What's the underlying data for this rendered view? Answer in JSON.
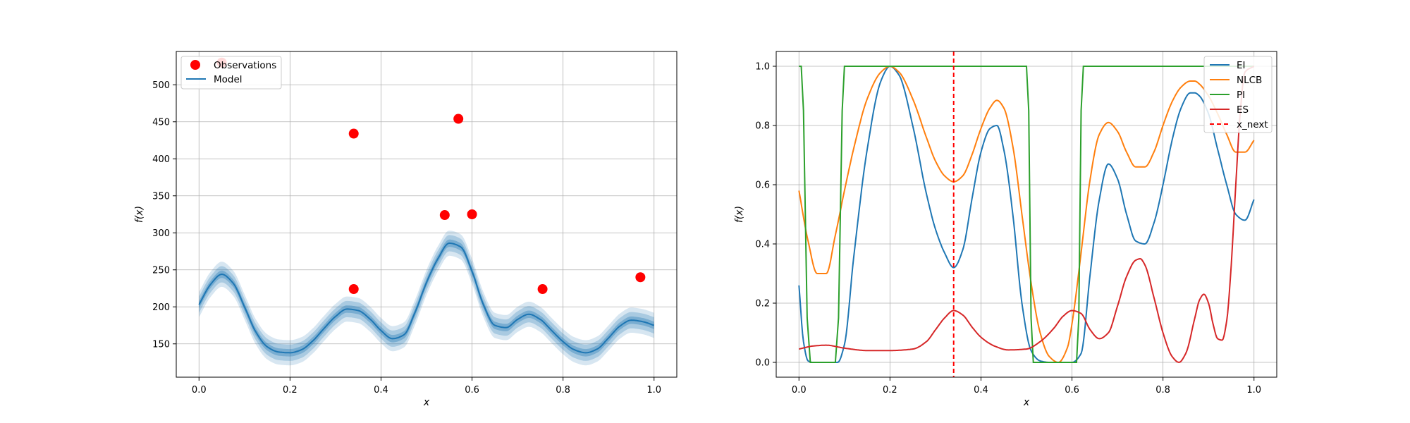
{
  "chart_data": [
    {
      "type": "line",
      "xlabel": "x",
      "ylabel": "f(x)",
      "xlim": [
        -0.05,
        1.05
      ],
      "ylim": [
        105,
        545
      ],
      "xticks": [
        0.0,
        0.2,
        0.4,
        0.6,
        0.8,
        1.0
      ],
      "xtick_labels": [
        "0.0",
        "0.2",
        "0.4",
        "0.6",
        "0.8",
        "1.0"
      ],
      "yticks": [
        150,
        200,
        250,
        300,
        350,
        400,
        450,
        500
      ],
      "ytick_labels": [
        "150",
        "200",
        "250",
        "300",
        "350",
        "400",
        "450",
        "500"
      ],
      "grid": true,
      "legend": "upper left",
      "colors": {
        "model": "#1f77b4",
        "observations": "#ff0000"
      },
      "observations": {
        "name": "Observations",
        "x": [
          0.05,
          0.34,
          0.34,
          0.54,
          0.57,
          0.6,
          0.755,
          0.97
        ],
        "y": [
          530,
          434,
          224,
          324,
          454,
          325,
          224,
          240
        ]
      },
      "model": {
        "name": "Model",
        "x": [
          0,
          0.025,
          0.05,
          0.075,
          0.1,
          0.125,
          0.15,
          0.175,
          0.2,
          0.225,
          0.25,
          0.275,
          0.3,
          0.325,
          0.35,
          0.375,
          0.4,
          0.425,
          0.45,
          0.475,
          0.5,
          0.525,
          0.55,
          0.575,
          0.6,
          0.625,
          0.65,
          0.675,
          0.7,
          0.725,
          0.75,
          0.775,
          0.8,
          0.825,
          0.85,
          0.875,
          0.9,
          0.925,
          0.95,
          0.975,
          1.0
        ],
        "y": [
          203,
          230,
          244,
          232,
          200,
          166,
          146,
          139,
          138,
          142,
          154,
          171,
          187,
          197,
          195,
          184,
          168,
          157,
          162,
          193,
          233,
          265,
          286,
          281,
          248,
          203,
          175,
          172,
          183,
          190,
          183,
          168,
          153,
          142,
          138,
          143,
          158,
          174,
          182,
          180,
          175
        ],
        "band_widths": [
          5,
          11,
          17
        ]
      }
    },
    {
      "type": "line",
      "xlabel": "x",
      "ylabel": "f(x)",
      "xlim": [
        -0.05,
        1.05
      ],
      "ylim": [
        -0.05,
        1.05
      ],
      "xticks": [
        0.0,
        0.2,
        0.4,
        0.6,
        0.8,
        1.0
      ],
      "xtick_labels": [
        "0.0",
        "0.2",
        "0.4",
        "0.6",
        "0.8",
        "1.0"
      ],
      "yticks": [
        0.0,
        0.2,
        0.4,
        0.6,
        0.8,
        1.0
      ],
      "ytick_labels": [
        "0.0",
        "0.2",
        "0.4",
        "0.6",
        "0.8",
        "1.0"
      ],
      "grid": true,
      "legend": "upper right",
      "series": [
        {
          "name": "EI",
          "color": "#1f77b4",
          "x": [
            0,
            0.01,
            0.02,
            0.03,
            0.05,
            0.07,
            0.085,
            0.1,
            0.12,
            0.15,
            0.18,
            0.2,
            0.22,
            0.25,
            0.28,
            0.3,
            0.32,
            0.34,
            0.36,
            0.38,
            0.4,
            0.42,
            0.435,
            0.45,
            0.47,
            0.49,
            0.51,
            0.53,
            0.55,
            0.57,
            0.59,
            0.6,
            0.62,
            0.64,
            0.66,
            0.68,
            0.7,
            0.72,
            0.74,
            0.76,
            0.78,
            0.8,
            0.82,
            0.84,
            0.86,
            0.87,
            0.88,
            0.9,
            0.92,
            0.94,
            0.96,
            0.98,
            1.0
          ],
          "y": [
            0.26,
            0.07,
            0.005,
            0.0,
            0.0,
            0.0,
            0.0,
            0.06,
            0.35,
            0.72,
            0.95,
            1.0,
            0.97,
            0.8,
            0.57,
            0.45,
            0.37,
            0.32,
            0.38,
            0.55,
            0.71,
            0.79,
            0.8,
            0.72,
            0.5,
            0.2,
            0.04,
            0.005,
            0.0,
            0.0,
            0.0,
            0.0,
            0.03,
            0.3,
            0.55,
            0.67,
            0.62,
            0.5,
            0.41,
            0.4,
            0.47,
            0.6,
            0.75,
            0.86,
            0.91,
            0.91,
            0.9,
            0.84,
            0.72,
            0.6,
            0.5,
            0.48,
            0.55
          ]
        },
        {
          "name": "NLCB",
          "color": "#ff7f0e",
          "x": [
            0,
            0.02,
            0.04,
            0.06,
            0.08,
            0.1,
            0.12,
            0.15,
            0.18,
            0.2,
            0.22,
            0.25,
            0.28,
            0.3,
            0.32,
            0.34,
            0.36,
            0.38,
            0.4,
            0.42,
            0.435,
            0.45,
            0.47,
            0.49,
            0.51,
            0.53,
            0.55,
            0.57,
            0.59,
            0.6,
            0.62,
            0.64,
            0.66,
            0.68,
            0.7,
            0.72,
            0.74,
            0.76,
            0.78,
            0.8,
            0.82,
            0.84,
            0.86,
            0.87,
            0.88,
            0.9,
            0.92,
            0.94,
            0.96,
            0.98,
            1.0
          ],
          "y": [
            0.58,
            0.41,
            0.3,
            0.3,
            0.43,
            0.58,
            0.72,
            0.89,
            0.98,
            1.0,
            0.98,
            0.89,
            0.76,
            0.68,
            0.63,
            0.61,
            0.63,
            0.7,
            0.79,
            0.86,
            0.885,
            0.86,
            0.73,
            0.5,
            0.27,
            0.1,
            0.02,
            0.0,
            0.05,
            0.13,
            0.37,
            0.62,
            0.77,
            0.81,
            0.78,
            0.71,
            0.66,
            0.66,
            0.71,
            0.8,
            0.88,
            0.93,
            0.95,
            0.95,
            0.94,
            0.9,
            0.84,
            0.77,
            0.71,
            0.71,
            0.75
          ]
        },
        {
          "name": "PI",
          "color": "#2ca02c",
          "x": [
            0,
            0.005,
            0.01,
            0.018,
            0.025,
            0.08,
            0.087,
            0.095,
            0.1,
            0.5,
            0.505,
            0.51,
            0.515,
            0.61,
            0.615,
            0.62,
            0.625,
            1.0
          ],
          "y": [
            1.0,
            1.0,
            0.85,
            0.15,
            0.0,
            0.0,
            0.15,
            0.85,
            1.0,
            1.0,
            0.85,
            0.15,
            0.0,
            0.0,
            0.15,
            0.85,
            1.0,
            1.0
          ]
        },
        {
          "name": "ES",
          "color": "#d62728",
          "x": [
            0,
            0.03,
            0.06,
            0.1,
            0.15,
            0.2,
            0.25,
            0.28,
            0.3,
            0.32,
            0.34,
            0.36,
            0.38,
            0.4,
            0.43,
            0.46,
            0.5,
            0.53,
            0.56,
            0.58,
            0.6,
            0.62,
            0.64,
            0.66,
            0.68,
            0.7,
            0.72,
            0.74,
            0.75,
            0.76,
            0.78,
            0.8,
            0.82,
            0.835,
            0.85,
            0.87,
            0.88,
            0.89,
            0.9,
            0.91,
            0.92,
            0.93,
            0.94,
            0.95,
            0.96,
            0.97,
            0.98,
            1.0
          ],
          "y": [
            0.045,
            0.055,
            0.058,
            0.048,
            0.04,
            0.04,
            0.045,
            0.07,
            0.11,
            0.15,
            0.175,
            0.16,
            0.12,
            0.085,
            0.055,
            0.042,
            0.045,
            0.07,
            0.115,
            0.155,
            0.175,
            0.165,
            0.11,
            0.08,
            0.1,
            0.19,
            0.29,
            0.345,
            0.35,
            0.33,
            0.22,
            0.1,
            0.02,
            0.0,
            0.03,
            0.15,
            0.21,
            0.23,
            0.2,
            0.13,
            0.08,
            0.075,
            0.14,
            0.33,
            0.6,
            0.85,
            0.98,
            1.0
          ]
        }
      ],
      "vline": {
        "name": "x_next",
        "x": 0.34,
        "color": "#ff0000",
        "style": "dashed"
      }
    }
  ]
}
